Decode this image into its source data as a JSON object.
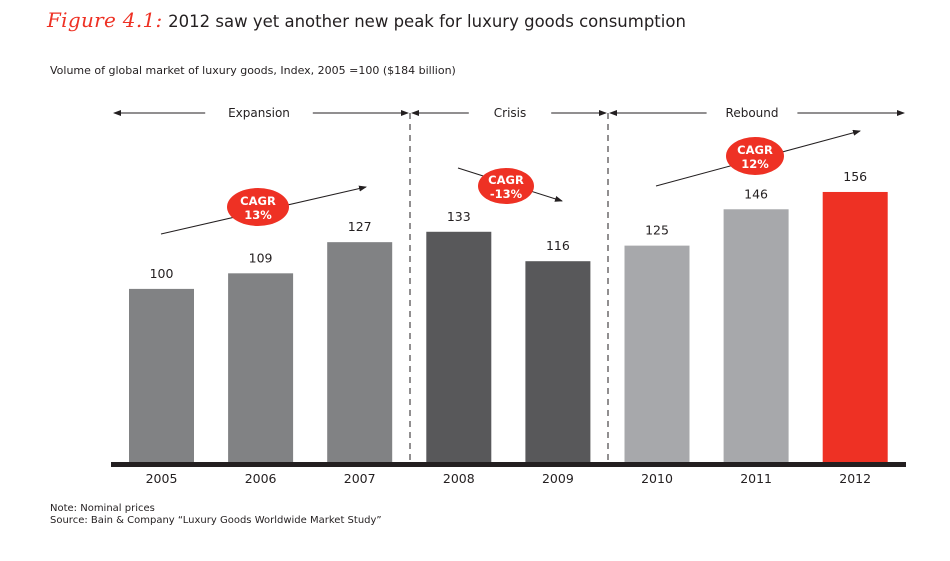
{
  "figure": {
    "label": "Figure 4.1:",
    "title": "2012 saw yet another new peak for luxury goods consumption",
    "subtitle": "Volume of global market of luxury goods, Index, 2005 =100 ($184 billion)"
  },
  "notes": {
    "note": "Note:  Nominal prices",
    "source": "Source:  Bain & Company “Luxury Goods Worldwide Market Study”"
  },
  "chart_data": {
    "type": "bar",
    "title": "2012 saw yet another new peak for luxury goods consumption",
    "xlabel": "",
    "ylabel": "Volume of global market of luxury goods, Index, 2005 =100 ($184 billion)",
    "ylim": [
      0,
      160
    ],
    "grid": false,
    "categories": [
      "2005",
      "2006",
      "2007",
      "2008",
      "2009",
      "2010",
      "2011",
      "2012"
    ],
    "values": [
      100,
      109,
      127,
      133,
      116,
      125,
      146,
      156
    ],
    "data_labels": [
      "100",
      "109",
      "127",
      "133",
      "116",
      "125",
      "146",
      "156"
    ],
    "bar_colors": [
      "#818284",
      "#818284",
      "#818284",
      "#58585a",
      "#58585a",
      "#a7a8ab",
      "#a7a8ab",
      "#ee3124"
    ],
    "phases": [
      {
        "name": "Expansion",
        "start": "2005",
        "end": "2007",
        "cagr_label": "CAGR",
        "cagr_value": "13%",
        "direction": "up"
      },
      {
        "name": "Crisis",
        "start": "2008",
        "end": "2009",
        "cagr_label": "CAGR",
        "cagr_value": "-13%",
        "direction": "down"
      },
      {
        "name": "Rebound",
        "start": "2010",
        "end": "2012",
        "cagr_label": "CAGR",
        "cagr_value": "12%",
        "direction": "up"
      }
    ],
    "accent_color": "#ee3124",
    "axis_color": "#231f20"
  }
}
